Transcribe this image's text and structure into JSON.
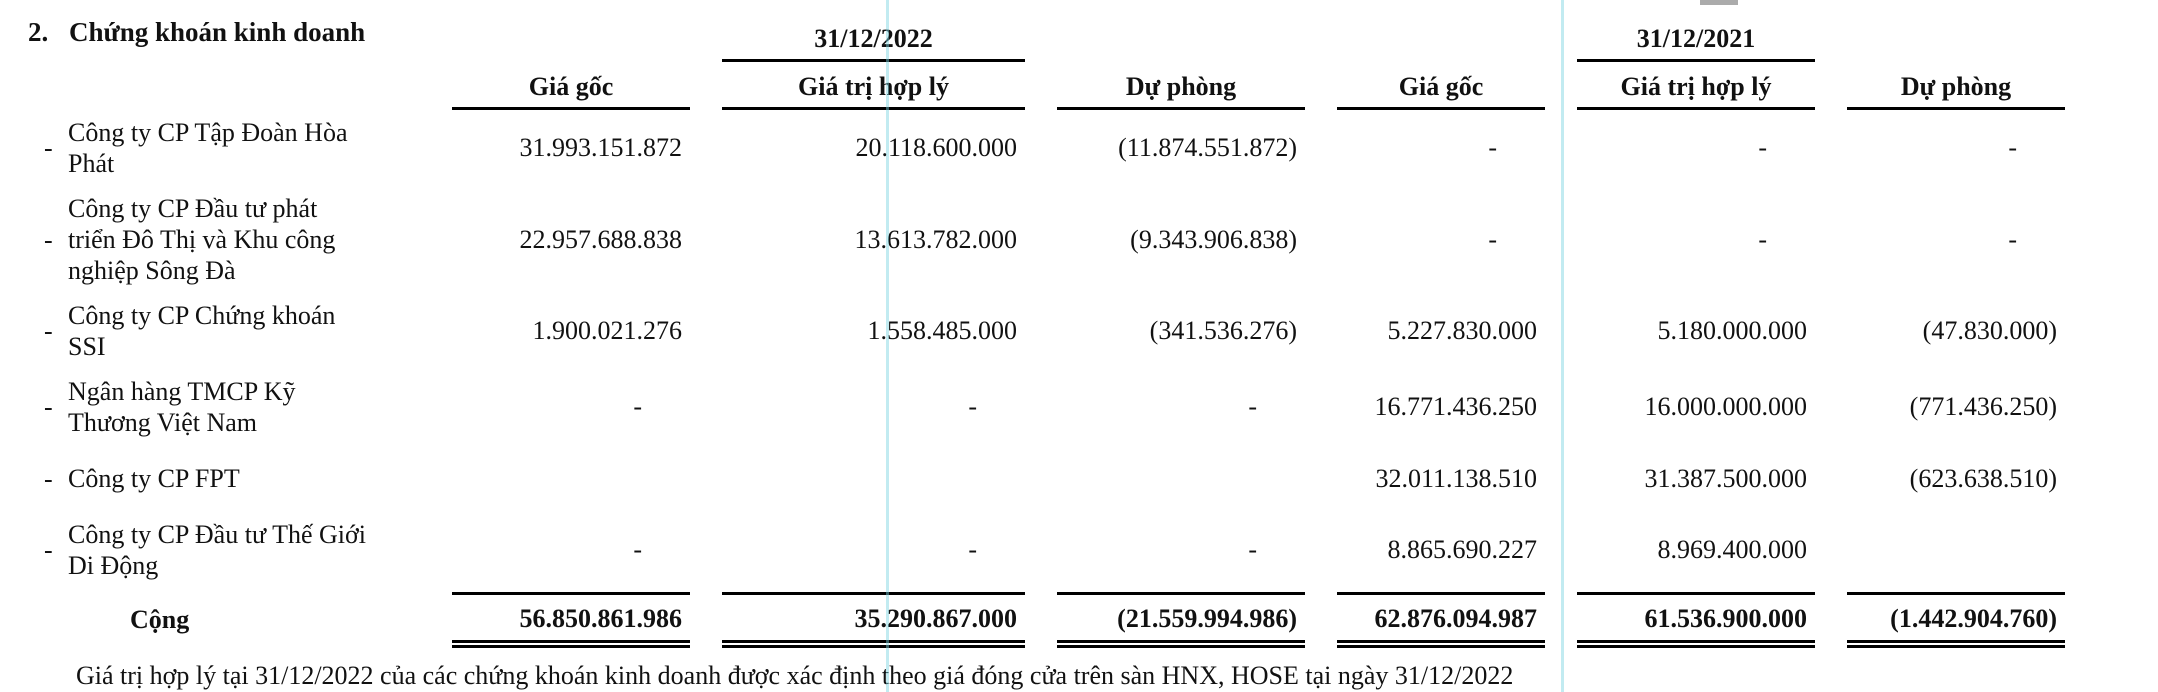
{
  "bullet": "-",
  "title": {
    "number": "2.",
    "label": "Chứng khoán kinh doanh"
  },
  "table": {
    "period_headers": [
      "31/12/2022",
      "31/12/2021"
    ],
    "column_headers": [
      "Giá gốc",
      "Giá trị hợp lý",
      "Dự phòng",
      "Giá gốc",
      "Giá trị hợp lý",
      "Dự phòng"
    ],
    "rows": [
      {
        "name": "Công ty CP Tập Đoàn Hòa Phát",
        "values": [
          "31.993.151.872",
          "20.118.600.000",
          "(11.874.551.872)",
          "-",
          "-",
          "-"
        ]
      },
      {
        "name": "Công ty CP Đầu tư phát triển Đô Thị và Khu công nghiệp Sông Đà",
        "values": [
          "22.957.688.838",
          "13.613.782.000",
          "(9.343.906.838)",
          "-",
          "-",
          "-"
        ]
      },
      {
        "name": "Công ty CP Chứng khoán SSI",
        "values": [
          "1.900.021.276",
          "1.558.485.000",
          "(341.536.276)",
          "5.227.830.000",
          "5.180.000.000",
          "(47.830.000)"
        ]
      },
      {
        "name": "Ngân hàng TMCP Kỹ Thương Việt Nam",
        "values": [
          "-",
          "-",
          "-",
          "16.771.436.250",
          "16.000.000.000",
          "(771.436.250)"
        ]
      },
      {
        "name": "Công ty CP FPT",
        "values": [
          "",
          "",
          "",
          "32.011.138.510",
          "31.387.500.000",
          "(623.638.510)"
        ]
      },
      {
        "name": "Công ty CP Đầu tư Thế Giới Di Động",
        "values": [
          "-",
          "-",
          "-",
          "8.865.690.227",
          "8.969.400.000",
          ""
        ]
      }
    ],
    "total": {
      "label": "Cộng",
      "values": [
        "56.850.861.986",
        "35.290.867.000",
        "(21.559.994.986)",
        "62.876.094.987",
        "61.536.900.000",
        "(1.442.904.760)"
      ]
    }
  },
  "footnote": "Giá trị hợp lý tại 31/12/2022 của các chứng khoán kinh doanh được xác định theo giá đóng cửa trên sàn HNX, HOSE tại ngày 31/12/2022"
}
